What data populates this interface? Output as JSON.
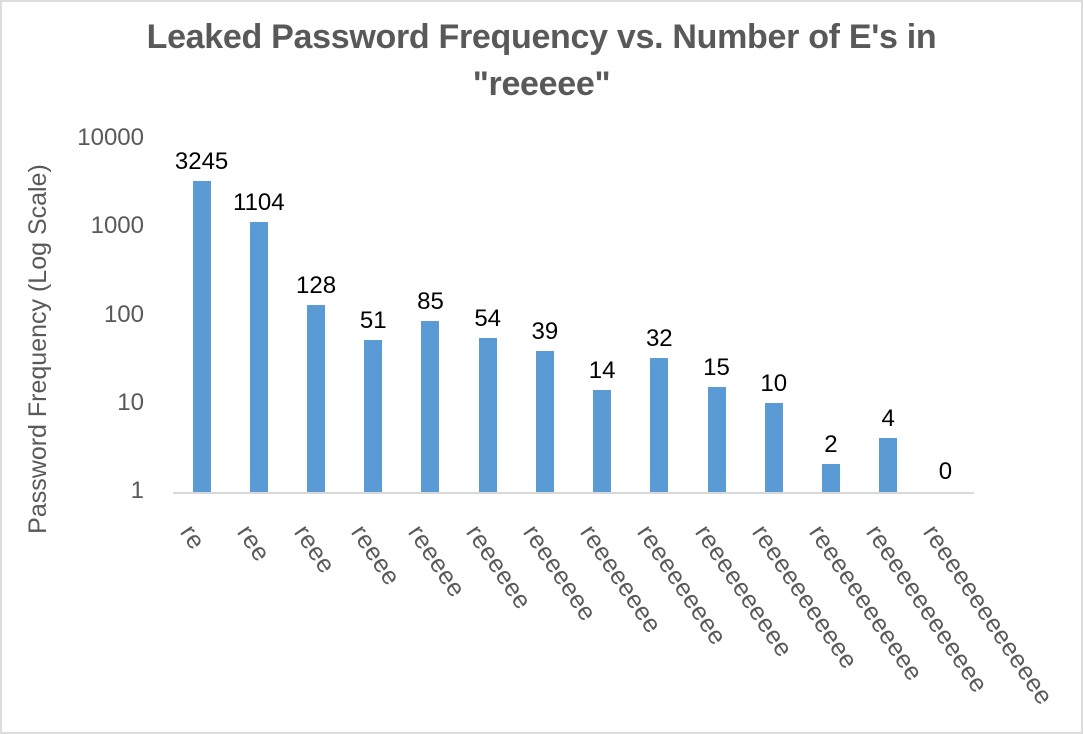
{
  "chart_data": {
    "type": "bar",
    "title": "Leaked Password Frequency vs. Number of E's in \"reeeee\"",
    "title_lines": [
      "Leaked Password Frequency vs. Number of E's in",
      "\"reeeee\""
    ],
    "xlabel": "",
    "ylabel": "Password Frequency (Log Scale)",
    "y_scale": "log",
    "ylim": [
      1,
      10000
    ],
    "y_ticks": [
      1,
      10,
      100,
      1000,
      10000
    ],
    "grid": false,
    "legend": false,
    "categories": [
      "re",
      "ree",
      "reee",
      "reeee",
      "reeeee",
      "reeeeee",
      "reeeeeee",
      "reeeeeeee",
      "reeeeeeeee",
      "reeeeeeeeee",
      "reeeeeeeeeee",
      "reeeeeeeeeeee",
      "reeeeeeeeeeeee",
      "reeeeeeeeeeeeee"
    ],
    "values": [
      3245,
      1104,
      128,
      51,
      85,
      54,
      39,
      14,
      32,
      15,
      10,
      2,
      4,
      0
    ],
    "data_labels": [
      "3245",
      "1104",
      "128",
      "51",
      "85",
      "54",
      "39",
      "14",
      "32",
      "15",
      "10",
      "2",
      "4",
      "0"
    ],
    "colors": {
      "bar": "#5B9BD5",
      "title": "#595959",
      "axis_text": "#595959",
      "data_label": "#000000",
      "axis_line": "#D9D9D9",
      "border": "#DCDCDC",
      "background": "#FFFFFF"
    }
  }
}
